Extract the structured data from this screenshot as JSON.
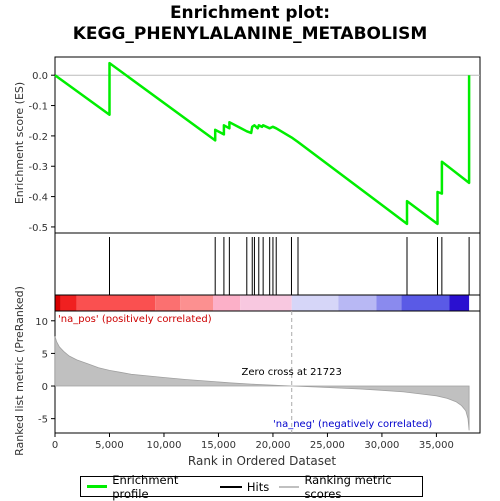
{
  "title_line1": "Enrichment plot:",
  "title_line2": "KEGG_PHENYLALANINE_METABOLISM",
  "chart_data": {
    "type": "line",
    "x_label": "Rank in Ordered Dataset",
    "es_panel": {
      "ylabel": "Enrichment score (ES)",
      "ylim": [
        -0.52,
        0.06
      ],
      "y_ticks": [
        0.0,
        -0.1,
        -0.2,
        -0.3,
        -0.4,
        -0.5
      ],
      "y_tick_labels": [
        "0.0",
        "-0.1",
        "-0.2",
        "-0.3",
        "-0.4",
        "-0.5"
      ],
      "series": [
        {
          "name": "Enrichment profile",
          "color": "#00ee00",
          "points": [
            [
              0,
              0.0
            ],
            [
              5000,
              -0.13
            ],
            [
              5000,
              0.04
            ],
            [
              14700,
              -0.215
            ],
            [
              14700,
              -0.18
            ],
            [
              15500,
              -0.195
            ],
            [
              15500,
              -0.165
            ],
            [
              16000,
              -0.175
            ],
            [
              16000,
              -0.155
            ],
            [
              17600,
              -0.185
            ],
            [
              18000,
              -0.19
            ],
            [
              18100,
              -0.17
            ],
            [
              18300,
              -0.165
            ],
            [
              18600,
              -0.175
            ],
            [
              18700,
              -0.165
            ],
            [
              19000,
              -0.17
            ],
            [
              19100,
              -0.165
            ],
            [
              19700,
              -0.175
            ],
            [
              20000,
              -0.17
            ],
            [
              20300,
              -0.175
            ],
            [
              21700,
              -0.205
            ],
            [
              22300,
              -0.22
            ],
            [
              32300,
              -0.49
            ],
            [
              32300,
              -0.415
            ],
            [
              35100,
              -0.49
            ],
            [
              35100,
              -0.385
            ],
            [
              35500,
              -0.39
            ],
            [
              35500,
              -0.285
            ],
            [
              38000,
              -0.355
            ],
            [
              38000,
              0.0
            ]
          ]
        }
      ]
    },
    "hits": {
      "name": "Hits",
      "x": [
        5000,
        14700,
        15500,
        16000,
        17600,
        18100,
        18300,
        18700,
        19100,
        19700,
        20000,
        20300,
        21700,
        22300,
        32300,
        35100,
        35500,
        38000
      ]
    },
    "color_bar": {
      "segments": [
        {
          "from": 0,
          "to": 500,
          "color": "#d80000"
        },
        {
          "from": 500,
          "to": 2000,
          "color": "#f02020"
        },
        {
          "from": 2000,
          "to": 9200,
          "color": "#fa5050"
        },
        {
          "from": 9200,
          "to": 11500,
          "color": "#fb7070"
        },
        {
          "from": 11500,
          "to": 14500,
          "color": "#fc9090"
        },
        {
          "from": 14500,
          "to": 17000,
          "color": "#fcb0c8"
        },
        {
          "from": 17000,
          "to": 21723,
          "color": "#f8c8e0"
        },
        {
          "from": 21723,
          "to": 26000,
          "color": "#d6d6f8"
        },
        {
          "from": 26000,
          "to": 29500,
          "color": "#b8b8f4"
        },
        {
          "from": 29500,
          "to": 31800,
          "color": "#8a8aee"
        },
        {
          "from": 31800,
          "to": 36200,
          "color": "#5a5ae6"
        },
        {
          "from": 36200,
          "to": 38000,
          "color": "#2a10d0"
        }
      ]
    },
    "metric_panel": {
      "ylabel": "Ranked list metric (PreRanked)",
      "name": "Ranking metric scores",
      "ylim": [
        -7.2,
        11.5
      ],
      "y_ticks": [
        10,
        5,
        0,
        -5
      ],
      "y_tick_labels": [
        "10",
        "5",
        "0",
        "-5"
      ],
      "fill_color": "#c0c0c0",
      "points": [
        [
          0,
          7.6
        ],
        [
          150,
          6.8
        ],
        [
          400,
          6.0
        ],
        [
          800,
          5.3
        ],
        [
          1300,
          4.6
        ],
        [
          2000,
          4.0
        ],
        [
          3000,
          3.4
        ],
        [
          4000,
          2.8
        ],
        [
          5000,
          2.4
        ],
        [
          6000,
          2.1
        ],
        [
          7000,
          1.8
        ],
        [
          8500,
          1.55
        ],
        [
          10000,
          1.3
        ],
        [
          12000,
          1.0
        ],
        [
          14000,
          0.75
        ],
        [
          16000,
          0.5
        ],
        [
          18000,
          0.3
        ],
        [
          20000,
          0.12
        ],
        [
          21723,
          0.0
        ],
        [
          24000,
          -0.15
        ],
        [
          26000,
          -0.3
        ],
        [
          28000,
          -0.45
        ],
        [
          30000,
          -0.65
        ],
        [
          32000,
          -0.9
        ],
        [
          33500,
          -1.2
        ],
        [
          35000,
          -1.5
        ],
        [
          36000,
          -1.9
        ],
        [
          36800,
          -2.4
        ],
        [
          37300,
          -3.0
        ],
        [
          37700,
          -3.8
        ],
        [
          37900,
          -5.0
        ],
        [
          38000,
          -6.8
        ]
      ],
      "zero_cross_label": "Zero cross at 21723",
      "zero_cross_x": 21723,
      "pos_label": "'na_pos' (positively correlated)",
      "neg_label": "'na_neg' (negatively correlated)"
    },
    "x_axis": {
      "xlim": [
        0,
        39000
      ],
      "ticks": [
        0,
        5000,
        10000,
        15000,
        20000,
        25000,
        30000,
        35000
      ],
      "tick_labels": [
        "0",
        "5,000",
        "10,000",
        "15,000",
        "20,000",
        "25,000",
        "30,000",
        "35,000"
      ]
    },
    "legend": {
      "placement": "bottom",
      "entries": [
        {
          "label": "Enrichment profile",
          "color": "#00ee00"
        },
        {
          "label": "Hits",
          "color": "#000000"
        },
        {
          "label": "Ranking metric scores",
          "color": "#c0c0c0"
        }
      ]
    }
  }
}
